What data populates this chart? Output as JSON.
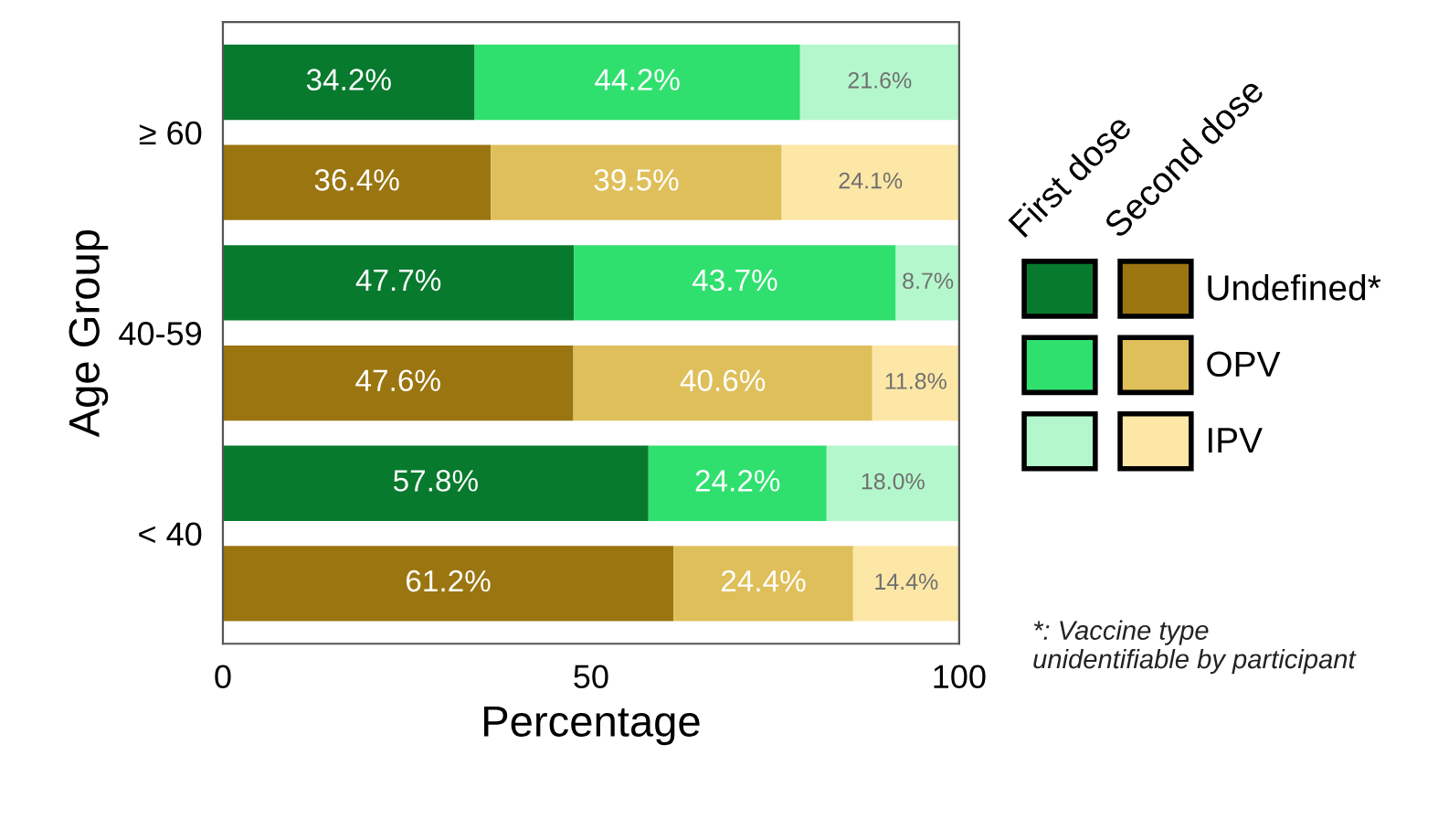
{
  "chart_data": {
    "type": "bar",
    "orientation": "horizontal",
    "stacked": true,
    "xlabel": "Percentage",
    "ylabel": "Age Group",
    "categories": [
      "≥ 60",
      null,
      "40-59",
      null,
      "< 40",
      null
    ],
    "series": [
      {
        "name": "Undefined*",
        "colors": [
          "#087a2e",
          "#9a7510",
          "#087a2e",
          "#9a7510",
          "#087a2e",
          "#9a7510"
        ],
        "values": [
          34.2,
          36.4,
          47.7,
          47.6,
          57.8,
          61.2
        ],
        "value_labels": [
          "34.2%",
          "36.4%",
          "47.7%",
          "47.6%",
          "57.8%",
          "61.2%"
        ]
      },
      {
        "name": "OPV",
        "colors": [
          "#2fe06e",
          "#dfbf5a",
          "#2fe06e",
          "#dfbf5a",
          "#2fe06e",
          "#dfbf5a"
        ],
        "values": [
          44.2,
          39.5,
          43.7,
          40.6,
          24.2,
          24.4
        ],
        "value_labels": [
          "44.2%",
          "39.5%",
          "43.7%",
          "40.6%",
          "24.2%",
          "24.4%"
        ]
      },
      {
        "name": "IPV",
        "colors": [
          "#b5f7cc",
          "#fde7a6",
          "#b5f7cc",
          "#fde7a6",
          "#b5f7cc",
          "#fde7a6"
        ],
        "values": [
          21.6,
          24.1,
          8.7,
          11.8,
          18.0,
          14.4
        ],
        "value_labels": [
          "21.6%",
          "24.1%",
          "8.7%",
          "11.8%",
          "18.0%",
          "14.4%"
        ]
      }
    ],
    "xlim": [
      0,
      100
    ],
    "xticks": [
      0,
      50,
      100
    ],
    "grid": false,
    "legend": "right",
    "annotations": [
      "First dose",
      "Second dose",
      "*: Vaccine type\nunidentifiable by participant"
    ]
  }
}
